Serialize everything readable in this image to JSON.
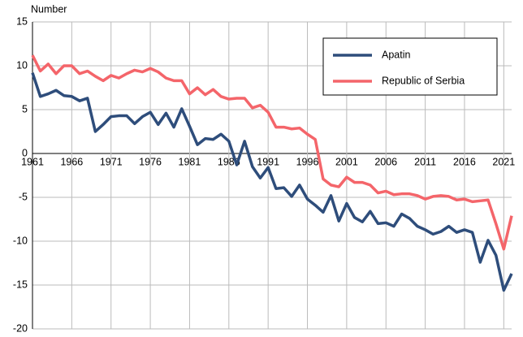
{
  "chart_data": {
    "type": "line",
    "y_label": "Number",
    "x": [
      1961,
      1962,
      1963,
      1964,
      1965,
      1966,
      1967,
      1968,
      1969,
      1970,
      1971,
      1972,
      1973,
      1974,
      1975,
      1976,
      1977,
      1978,
      1979,
      1980,
      1981,
      1982,
      1983,
      1984,
      1985,
      1986,
      1987,
      1988,
      1989,
      1990,
      1991,
      1992,
      1993,
      1994,
      1995,
      1996,
      1997,
      1998,
      1999,
      2000,
      2001,
      2002,
      2003,
      2004,
      2005,
      2006,
      2007,
      2008,
      2009,
      2010,
      2011,
      2012,
      2013,
      2014,
      2015,
      2016,
      2017,
      2018,
      2019,
      2020,
      2021,
      2022
    ],
    "series": [
      {
        "name": "Apatin",
        "color": "#2e4d7b",
        "values": [
          9.2,
          6.5,
          6.8,
          7.2,
          6.6,
          6.5,
          6.0,
          6.3,
          2.5,
          3.3,
          4.2,
          4.3,
          4.3,
          3.4,
          4.2,
          4.7,
          3.3,
          4.6,
          3.0,
          5.1,
          3.1,
          1.0,
          1.7,
          1.6,
          2.2,
          1.4,
          -1.3,
          1.4,
          -1.5,
          -2.8,
          -1.6,
          -4.0,
          -3.9,
          -4.9,
          -3.6,
          -5.2,
          -5.9,
          -6.7,
          -4.8,
          -7.7,
          -5.7,
          -7.3,
          -7.8,
          -6.6,
          -8.0,
          -7.9,
          -8.3,
          -6.9,
          -7.4,
          -8.3,
          -8.7,
          -9.2,
          -8.9,
          -8.3,
          -9.0,
          -8.7,
          -9.0,
          -12.4,
          -9.9,
          -11.6,
          -15.6,
          -13.7
        ]
      },
      {
        "name": "Republic of Serbia",
        "color": "#f4656a",
        "values": [
          11.2,
          9.4,
          10.2,
          9.1,
          10.0,
          10.0,
          9.1,
          9.4,
          8.8,
          8.3,
          8.9,
          8.6,
          9.1,
          9.5,
          9.3,
          9.7,
          9.3,
          8.6,
          8.3,
          8.3,
          6.8,
          7.5,
          6.7,
          7.3,
          6.5,
          6.2,
          6.3,
          6.3,
          5.2,
          5.5,
          4.7,
          3.0,
          3.0,
          2.8,
          2.9,
          2.2,
          1.6,
          -2.9,
          -3.6,
          -3.8,
          -2.7,
          -3.3,
          -3.3,
          -3.6,
          -4.5,
          -4.3,
          -4.7,
          -4.6,
          -4.6,
          -4.8,
          -5.2,
          -4.9,
          -4.8,
          -4.9,
          -5.3,
          -5.2,
          -5.5,
          -5.4,
          -5.3,
          -8.0,
          -10.9,
          -7.1
        ]
      }
    ],
    "xlim": [
      1961,
      2022
    ],
    "xticks": [
      1961,
      1966,
      1971,
      1976,
      1981,
      1986,
      1991,
      1996,
      2001,
      2006,
      2011,
      2016,
      2021
    ],
    "ylim": [
      -20,
      15
    ],
    "yticks": [
      -20,
      -15,
      -10,
      -5,
      0,
      5,
      10,
      15
    ],
    "grid": true
  }
}
